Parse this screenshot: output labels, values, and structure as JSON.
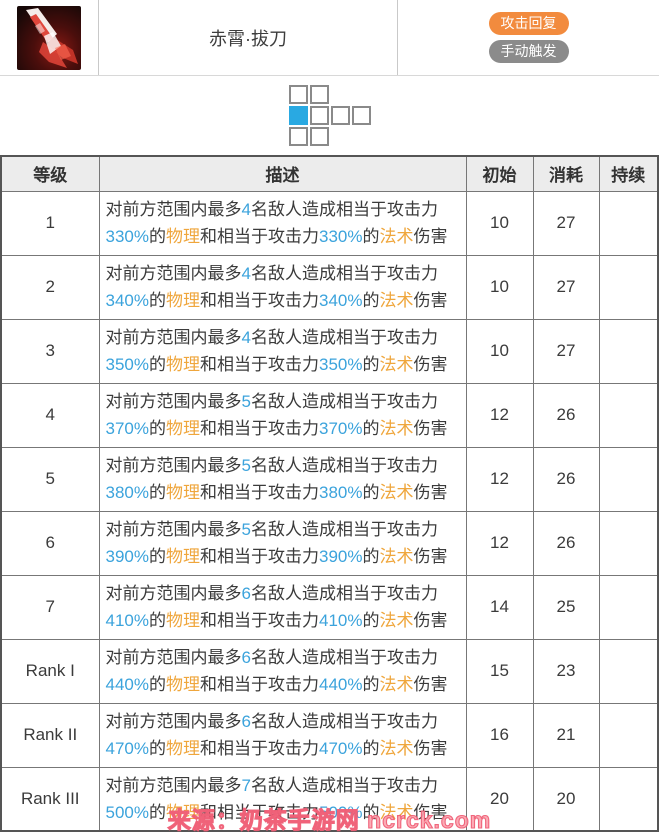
{
  "header": {
    "skill_name": "赤霄·拔刀",
    "skill_icon": "red-blade-skill-icon",
    "badges": [
      {
        "label": "攻击回复",
        "color": "#F28B3E"
      },
      {
        "label": "手动触发",
        "color": "#8B8B8B"
      }
    ]
  },
  "range_grid": {
    "legend": {
      "0": "empty",
      "1": "range-tile",
      "2": "operator-tile"
    },
    "operator_color": "#29A9E2",
    "rows": [
      [
        1,
        1,
        0,
        0
      ],
      [
        2,
        1,
        1,
        1
      ],
      [
        1,
        1,
        0,
        0
      ]
    ]
  },
  "table": {
    "headers": [
      "等级",
      "描述",
      "初始",
      "消耗",
      "持续"
    ],
    "desc_text": {
      "line1_prefix": "对前方范围内最多",
      "line1_suffix": "名敌人造成相当于攻击力",
      "de": "的",
      "physical": "物理",
      "mid": "和相当于攻击力",
      "arts": "法术",
      "suffix": "伤害"
    },
    "value_colors": {
      "numbers": "#3BA3DC",
      "damage_types": "#EFA63C"
    },
    "rows": [
      {
        "level": "1",
        "enemies": "4",
        "percent": "330%",
        "initial": "10",
        "cost": "27",
        "duration": ""
      },
      {
        "level": "2",
        "enemies": "4",
        "percent": "340%",
        "initial": "10",
        "cost": "27",
        "duration": ""
      },
      {
        "level": "3",
        "enemies": "4",
        "percent": "350%",
        "initial": "10",
        "cost": "27",
        "duration": ""
      },
      {
        "level": "4",
        "enemies": "5",
        "percent": "370%",
        "initial": "12",
        "cost": "26",
        "duration": ""
      },
      {
        "level": "5",
        "enemies": "5",
        "percent": "380%",
        "initial": "12",
        "cost": "26",
        "duration": ""
      },
      {
        "level": "6",
        "enemies": "5",
        "percent": "390%",
        "initial": "12",
        "cost": "26",
        "duration": ""
      },
      {
        "level": "7",
        "enemies": "6",
        "percent": "410%",
        "initial": "14",
        "cost": "25",
        "duration": ""
      },
      {
        "level": "Rank I",
        "enemies": "6",
        "percent": "440%",
        "initial": "15",
        "cost": "23",
        "duration": ""
      },
      {
        "level": "Rank II",
        "enemies": "6",
        "percent": "470%",
        "initial": "16",
        "cost": "21",
        "duration": ""
      },
      {
        "level": "Rank III",
        "enemies": "7",
        "percent": "500%",
        "initial": "20",
        "cost": "20",
        "duration": ""
      }
    ]
  },
  "watermark": "来源：奶茶手游网 ncrck.com"
}
